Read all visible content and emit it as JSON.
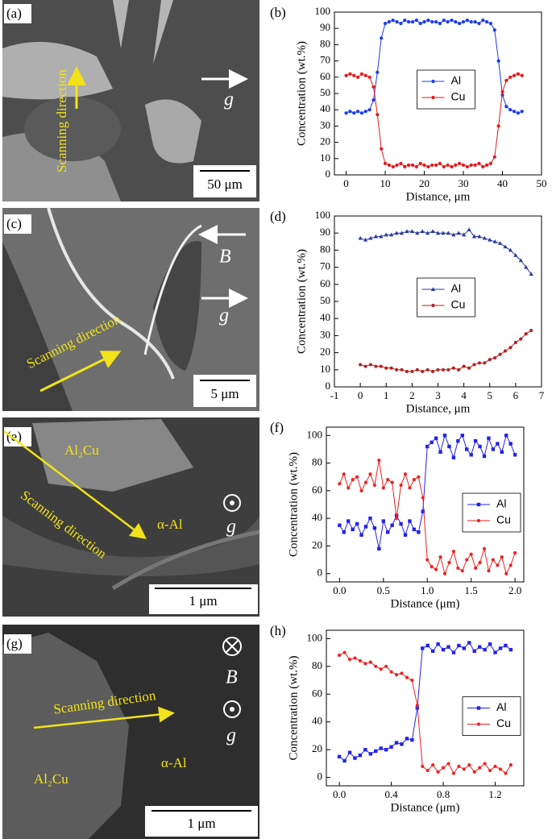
{
  "images": [
    {
      "panel_label": "(a)",
      "texts": [
        "Scanning direction",
        "g"
      ],
      "scale_bar": "50 μm"
    },
    {
      "panel_label": "(c)",
      "texts": [
        "B",
        "g",
        "Scanning direction"
      ],
      "scale_bar": "5 μm"
    },
    {
      "panel_label": "(e)",
      "texts": [
        "Al₂Cu",
        "Scanning direction",
        "α-Al",
        "g"
      ],
      "scale_bar": "1 μm"
    },
    {
      "panel_label": "(g)",
      "texts": [
        "B",
        "Scanning direction",
        "g",
        "α-Al",
        "Al₂Cu"
      ],
      "scale_bar": "1 μm"
    }
  ],
  "chart_data": [
    {
      "type": "line",
      "panel_label": "(b)",
      "x_label": "Distance, μm",
      "y_label": "Concentration (wt.%)",
      "legend": "center",
      "x": [
        0,
        1,
        2,
        3,
        4,
        5,
        6,
        7,
        8,
        9,
        10,
        11,
        12,
        13,
        14,
        15,
        16,
        17,
        18,
        19,
        20,
        21,
        22,
        23,
        24,
        25,
        26,
        27,
        28,
        29,
        30,
        31,
        32,
        33,
        34,
        35,
        36,
        37,
        38,
        39,
        40,
        41,
        42,
        43,
        44,
        45
      ],
      "series": [
        {
          "name": "Al",
          "color": "#1a3cf0",
          "marker": "circle",
          "values": [
            38,
            39,
            38,
            39,
            38,
            39,
            40,
            46,
            63,
            84,
            93,
            94,
            95,
            94,
            93,
            95,
            94,
            94,
            95,
            93,
            94,
            95,
            94,
            94,
            93,
            95,
            94,
            95,
            94,
            93,
            94,
            95,
            94,
            94,
            93,
            95,
            94,
            93,
            89,
            70,
            49,
            42,
            40,
            39,
            38,
            39
          ]
        },
        {
          "name": "Cu",
          "color": "#e31a1c",
          "marker": "circle",
          "values": [
            61,
            62,
            61,
            60,
            62,
            61,
            60,
            54,
            37,
            16,
            7,
            6,
            5,
            6,
            7,
            5,
            6,
            6,
            5,
            7,
            6,
            5,
            6,
            6,
            7,
            5,
            6,
            5,
            6,
            7,
            6,
            5,
            6,
            6,
            7,
            5,
            6,
            7,
            11,
            30,
            51,
            58,
            60,
            61,
            62,
            61
          ]
        }
      ],
      "xlim": [
        -3,
        50
      ],
      "xticks": [
        0,
        10,
        20,
        30,
        40,
        50
      ],
      "ylim": [
        0,
        100
      ],
      "yticks": [
        0,
        10,
        20,
        30,
        40,
        50,
        60,
        70,
        80,
        90,
        100
      ]
    },
    {
      "type": "line",
      "panel_label": "(d)",
      "x_label": "Distance, μm",
      "y_label": "Concentration (wt.%)",
      "legend": "center",
      "x": [
        0,
        0.2,
        0.4,
        0.6,
        0.8,
        1,
        1.2,
        1.4,
        1.6,
        1.8,
        2,
        2.2,
        2.4,
        2.6,
        2.8,
        3,
        3.2,
        3.4,
        3.6,
        3.8,
        4,
        4.2,
        4.4,
        4.6,
        4.8,
        5,
        5.2,
        5.4,
        5.6,
        5.8,
        6,
        6.2,
        6.4,
        6.6
      ],
      "series": [
        {
          "name": "Al",
          "color": "#2b3a9f",
          "marker": "triangle",
          "values": [
            87,
            86,
            87,
            88,
            88,
            89,
            89,
            90,
            90,
            91,
            91,
            90,
            91,
            90,
            91,
            90,
            90,
            90,
            89,
            90,
            89,
            92,
            88,
            88,
            87,
            86,
            85,
            84,
            82,
            80,
            77,
            74,
            70,
            66
          ]
        },
        {
          "name": "Cu",
          "color": "#b22222",
          "marker": "circle",
          "values": [
            13,
            12,
            13,
            12,
            12,
            11,
            11,
            10,
            10,
            9,
            9,
            10,
            9,
            10,
            9,
            10,
            10,
            10,
            11,
            10,
            12,
            11,
            13,
            14,
            14,
            16,
            17,
            19,
            21,
            23,
            26,
            28,
            31,
            33
          ]
        }
      ],
      "xlim": [
        -1,
        7
      ],
      "xticks": [
        -1,
        0,
        1,
        2,
        3,
        4,
        5,
        6,
        7
      ],
      "ylim": [
        0,
        100
      ],
      "yticks": [
        0,
        10,
        20,
        30,
        40,
        50,
        60,
        70,
        80,
        90,
        100
      ]
    },
    {
      "type": "line",
      "panel_label": "(f)",
      "x_label": "Distance (μm)",
      "y_label": "Concentration (wt.%)",
      "legend": "right",
      "x": [
        0,
        0.05,
        0.1,
        0.15,
        0.2,
        0.25,
        0.3,
        0.35,
        0.4,
        0.45,
        0.5,
        0.55,
        0.6,
        0.65,
        0.7,
        0.75,
        0.8,
        0.85,
        0.9,
        0.95,
        1,
        1.05,
        1.1,
        1.15,
        1.2,
        1.25,
        1.3,
        1.35,
        1.4,
        1.45,
        1.5,
        1.55,
        1.6,
        1.65,
        1.7,
        1.75,
        1.8,
        1.85,
        1.9,
        1.95,
        2
      ],
      "series": [
        {
          "name": "Al",
          "color": "#2222ee",
          "marker": "square",
          "values": [
            35,
            30,
            38,
            32,
            36,
            28,
            34,
            40,
            33,
            18,
            38,
            30,
            35,
            42,
            36,
            28,
            38,
            32,
            30,
            45,
            92,
            95,
            98,
            88,
            100,
            92,
            84,
            96,
            100,
            90,
            86,
            96,
            92,
            85,
            98,
            90,
            94,
            88,
            100,
            94,
            86
          ]
        },
        {
          "name": "Cu",
          "color": "#ee2222",
          "marker": "circle",
          "values": [
            65,
            72,
            62,
            68,
            70,
            60,
            66,
            72,
            64,
            82,
            62,
            68,
            66,
            40,
            64,
            72,
            62,
            68,
            70,
            55,
            10,
            5,
            3,
            12,
            0,
            8,
            16,
            4,
            2,
            10,
            14,
            4,
            8,
            18,
            2,
            10,
            6,
            12,
            0,
            6,
            15
          ]
        }
      ],
      "xlim": [
        -0.15,
        2.1
      ],
      "xticks": [
        {
          "value": 0,
          "label": "0.0"
        },
        0.5,
        {
          "value": 1,
          "label": "1.0"
        },
        1.5,
        {
          "value": 2,
          "label": "2.0"
        }
      ],
      "ylim": [
        -6,
        106
      ],
      "yticks": [
        0,
        20,
        40,
        60,
        80,
        100
      ]
    },
    {
      "type": "line",
      "panel_label": "(h)",
      "x_label": "Distance (μm)",
      "y_label": "Concentration (wt.%)",
      "legend": "right",
      "x": [
        0,
        0.04,
        0.08,
        0.12,
        0.16,
        0.2,
        0.24,
        0.28,
        0.32,
        0.36,
        0.4,
        0.44,
        0.48,
        0.52,
        0.56,
        0.6,
        0.64,
        0.68,
        0.72,
        0.76,
        0.8,
        0.84,
        0.88,
        0.92,
        0.96,
        1,
        1.04,
        1.08,
        1.12,
        1.16,
        1.2,
        1.24,
        1.28,
        1.32
      ],
      "series": [
        {
          "name": "Al",
          "color": "#2222ee",
          "marker": "square",
          "values": [
            15,
            12,
            18,
            14,
            16,
            20,
            17,
            19,
            21,
            20,
            22,
            25,
            24,
            28,
            27,
            50,
            93,
            95,
            91,
            96,
            92,
            94,
            90,
            95,
            93,
            97,
            91,
            94,
            92,
            96,
            90,
            93,
            95,
            92
          ]
        },
        {
          "name": "Cu",
          "color": "#ee2222",
          "marker": "circle",
          "values": [
            88,
            90,
            85,
            86,
            84,
            82,
            83,
            80,
            78,
            80,
            76,
            74,
            75,
            72,
            70,
            52,
            8,
            5,
            9,
            4,
            7,
            10,
            3,
            8,
            6,
            9,
            4,
            7,
            10,
            5,
            8,
            6,
            3,
            9
          ]
        }
      ],
      "xlim": [
        -0.1,
        1.42
      ],
      "xticks": [
        {
          "value": 0,
          "label": "0.0"
        },
        0.4,
        0.8,
        1.2
      ],
      "ylim": [
        -6,
        106
      ],
      "yticks": [
        0,
        20,
        40,
        60,
        80,
        100
      ]
    }
  ]
}
